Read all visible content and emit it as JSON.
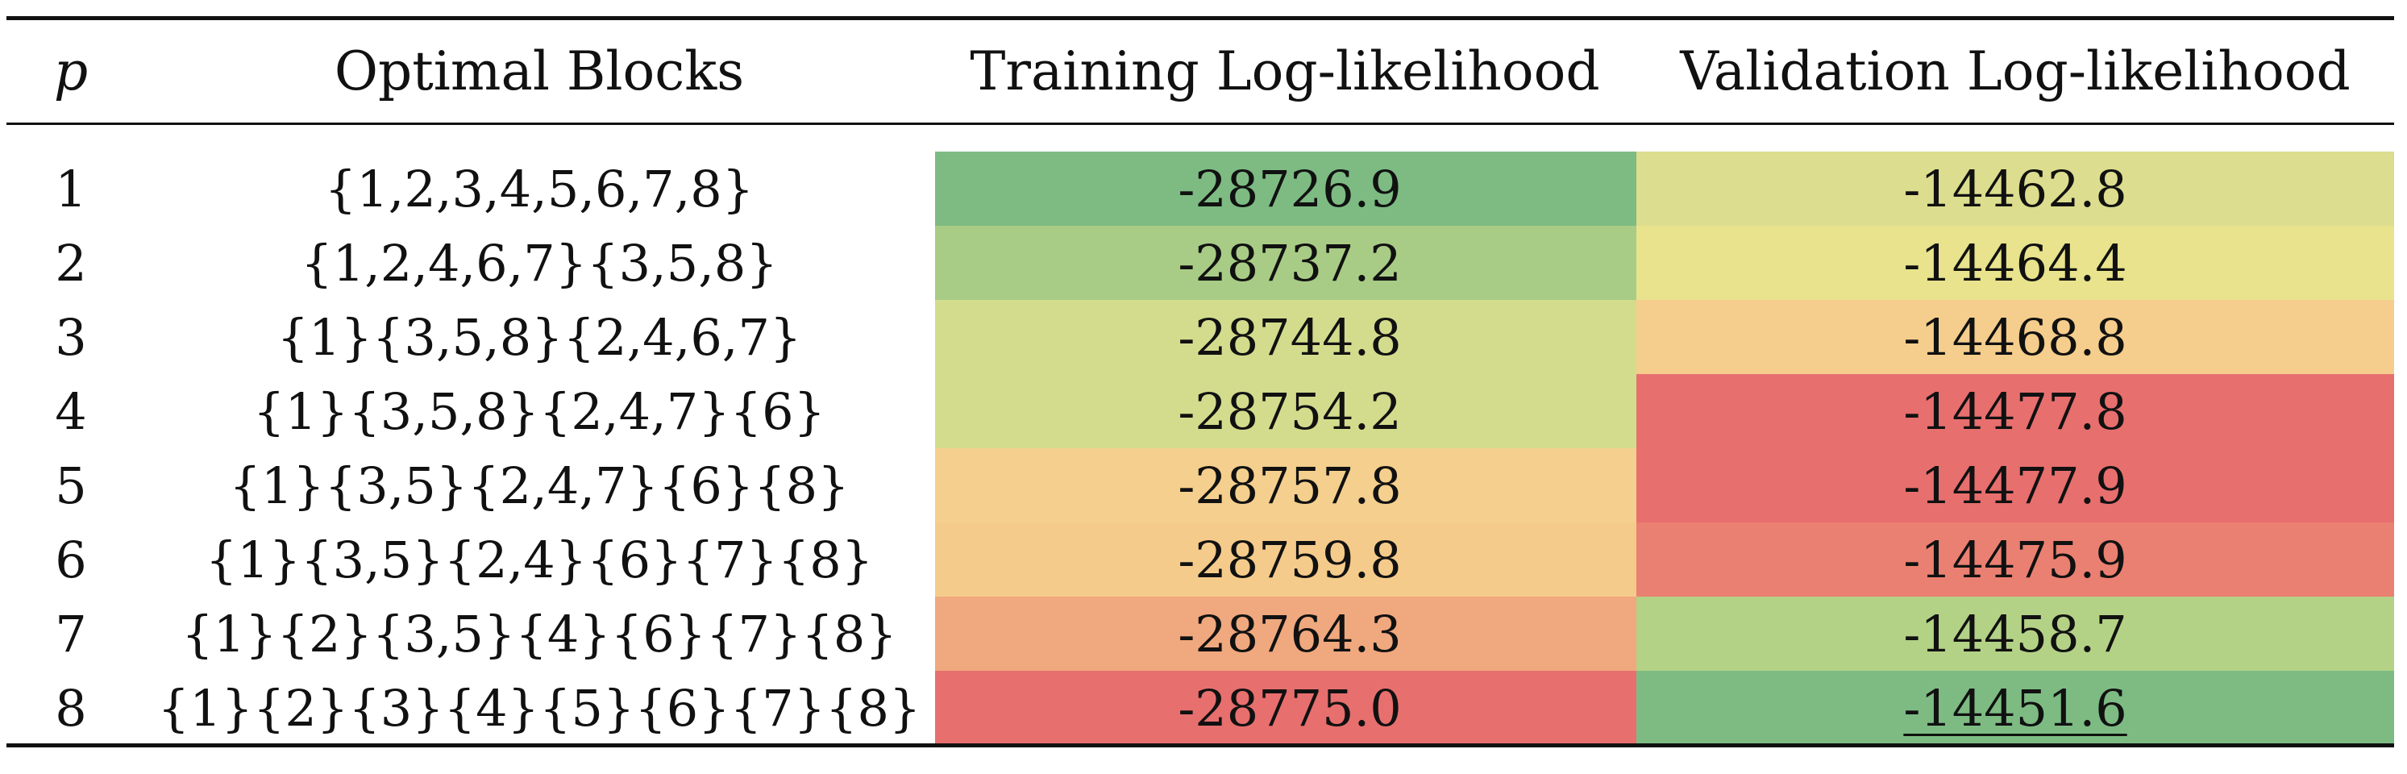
{
  "table": {
    "headers": {
      "p": "p",
      "blocks": "Optimal Blocks",
      "training": "Training Log-likelihood",
      "validation": "Validation Log-likelihood"
    },
    "rows": [
      {
        "p": "1",
        "blocks": "{1,2,3,4,5,6,7,8}",
        "training": "-28726.9",
        "validation": "-14462.8",
        "training_color": "#7dbb83",
        "validation_color": "#dcdd8e",
        "validation_underlined": false
      },
      {
        "p": "2",
        "blocks": "{1,2,4,6,7}{3,5,8}",
        "training": "-28737.2",
        "validation": "-14464.4",
        "training_color": "#a8cc85",
        "validation_color": "#e8e38c",
        "validation_underlined": false
      },
      {
        "p": "3",
        "blocks": "{1}{3,5,8}{2,4,6,7}",
        "training": "-28744.8",
        "validation": "-14468.8",
        "training_color": "#d3dc8d",
        "validation_color": "#f5cd8c",
        "validation_underlined": false
      },
      {
        "p": "4",
        "blocks": "{1}{3,5,8}{2,4,7}{6}",
        "training": "-28754.2",
        "validation": "-14477.8",
        "training_color": "#d3dc8d",
        "validation_color": "#e76f6e",
        "validation_underlined": false
      },
      {
        "p": "5",
        "blocks": "{1}{3,5}{2,4,7}{6}{8}",
        "training": "-28757.8",
        "validation": "-14477.9",
        "training_color": "#f5cf8d",
        "validation_color": "#e76f6e",
        "validation_underlined": false
      },
      {
        "p": "6",
        "blocks": "{1}{3,5}{2,4}{6}{7}{8}",
        "training": "-28759.8",
        "validation": "-14475.9",
        "training_color": "#f5cb8b",
        "validation_color": "#ea8071",
        "validation_underlined": false
      },
      {
        "p": "7",
        "blocks": "{1}{2}{3,5}{4}{6}{7}{8}",
        "training": "-28764.3",
        "validation": "-14458.7",
        "training_color": "#f0a87e",
        "validation_color": "#b3d286",
        "validation_underlined": false
      },
      {
        "p": "8",
        "blocks": "{1}{2}{3}{4}{5}{6}{7}{8}",
        "training": "-28775.0",
        "validation": "-14451.6",
        "training_color": "#e76f6e",
        "validation_color": "#7dbb83",
        "validation_underlined": true
      }
    ]
  }
}
